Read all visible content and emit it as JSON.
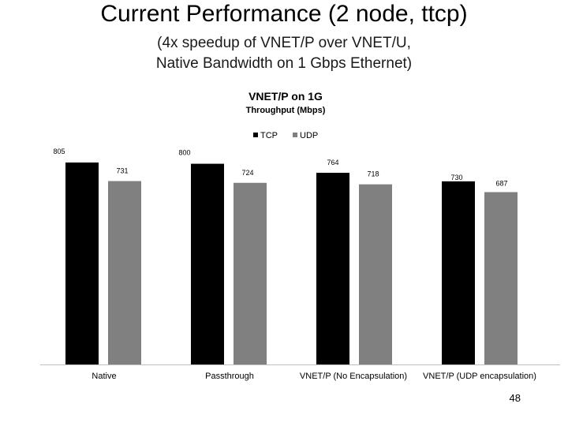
{
  "slide": {
    "title": "Current Performance (2 node, ttcp)",
    "subtitle_line1": "(4x speedup of VNET/P over VNET/U,",
    "subtitle_line2": "Native Bandwidth on 1 Gbps Ethernet)",
    "page_number": "48"
  },
  "chart_data": {
    "type": "bar",
    "title": "VNET/P on 1G",
    "subtitle": "Throughput (Mbps)",
    "xlabel": "",
    "ylabel": "",
    "categories": [
      "Native",
      "Passthrough",
      "VNET/P (No Encapsulation)",
      "VNET/P (UDP encapsulation)"
    ],
    "series": [
      {
        "name": "TCP",
        "values": [
          805,
          800,
          764,
          730
        ],
        "color": "#000000"
      },
      {
        "name": "UDP",
        "values": [
          731,
          724,
          718,
          687
        ],
        "color": "#808080"
      }
    ],
    "ylim": [
      0,
      805
    ],
    "grid": false,
    "legend": "top-center"
  }
}
